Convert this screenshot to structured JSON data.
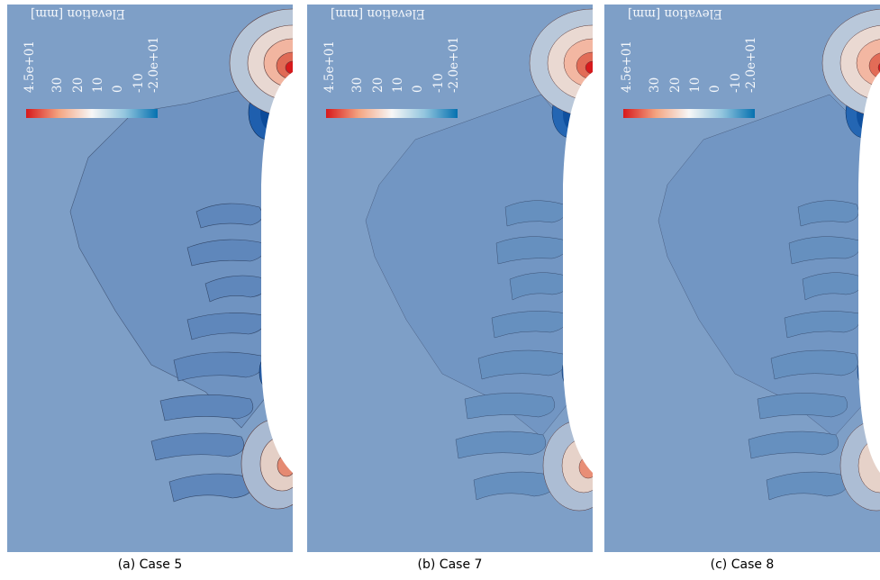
{
  "colorbar": {
    "title": "Elevation [mm]",
    "ticks": [
      "4.5e+01",
      "30",
      "20",
      "10",
      "0",
      "-10",
      "-2.0e+01"
    ],
    "tick_values": [
      45,
      30,
      20,
      10,
      0,
      -10,
      -20
    ],
    "range": [
      -20,
      45
    ],
    "colors": [
      "#d7191c",
      "#f4a582",
      "#f7f7f7",
      "#92c5de",
      "#0571b0"
    ]
  },
  "background_color": "#7e9fc7",
  "panels": [
    {
      "caption": "(a) Case 5"
    },
    {
      "caption": "(b) Case 7"
    },
    {
      "caption": "(c) Case 8"
    }
  ]
}
